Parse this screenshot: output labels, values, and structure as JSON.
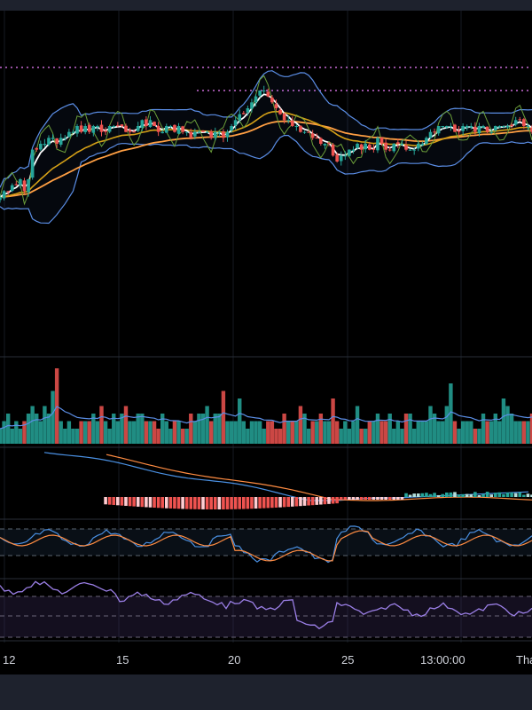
{
  "colors": {
    "background": "#000000",
    "frame": "#1e222d",
    "up": "#26a69a",
    "down": "#ef5350",
    "bollinger": "#5b8ee6",
    "ema_fast": "#ffffff",
    "ema_mid": "#d4a017",
    "ema_slow": "#ff9f43",
    "rsi": "#9b7fe6",
    "stoch_k": "#4a90e2",
    "stoch_d": "#ff8c42",
    "macd": "#4a90e2",
    "signal": "#ff8c42",
    "level_line": "#c86bd6",
    "separator": "#2a2e39"
  },
  "chart_data": [
    {
      "type": "candlestick",
      "panel": "price",
      "xaxis_labels": [
        "12",
        "15",
        "20",
        "25",
        "13:00:00",
        "Thá"
      ],
      "candle_count": 132,
      "ylabel": "",
      "ohlc_close": [
        26,
        27,
        27,
        28,
        28,
        29,
        27,
        29,
        34,
        34,
        35,
        35,
        36,
        36,
        35,
        36,
        36,
        37,
        37,
        38,
        37,
        38,
        37,
        38,
        38,
        37,
        37,
        38,
        38,
        38,
        38,
        37,
        37,
        37,
        38,
        39,
        38,
        39,
        38,
        37,
        37,
        38,
        38,
        37,
        38,
        37,
        37,
        36,
        37,
        37,
        37,
        37,
        36,
        37,
        37,
        36,
        37,
        38,
        39,
        40,
        40,
        41,
        42,
        43,
        44,
        44,
        43,
        42,
        41,
        40,
        39,
        39,
        38,
        38,
        37,
        37,
        37,
        36,
        36,
        35,
        35,
        35,
        33,
        32,
        33,
        33,
        34,
        34,
        35,
        34,
        35,
        34,
        34,
        36,
        35,
        34,
        34,
        35,
        35,
        35,
        34,
        34,
        34,
        35,
        35,
        36,
        37,
        37,
        38,
        38,
        38,
        38,
        37,
        37,
        38,
        38,
        38,
        37,
        38,
        38,
        37,
        37,
        38,
        38,
        38,
        38,
        38,
        39,
        39,
        38,
        38,
        37
      ]
    },
    {
      "type": "bar",
      "panel": "volume",
      "candle_count": 132,
      "values": [
        2,
        3,
        4,
        2,
        3,
        2,
        3,
        4,
        5,
        4,
        3,
        5,
        4,
        7,
        10,
        3,
        2,
        3,
        2,
        2,
        3,
        3,
        3,
        4,
        3,
        5,
        3,
        2,
        4,
        3,
        4,
        5,
        3,
        3,
        4,
        4,
        3,
        3,
        3,
        2,
        4,
        3,
        2,
        3,
        3,
        2,
        2,
        4,
        3,
        4,
        4,
        5,
        3,
        4,
        4,
        7,
        3,
        3,
        3,
        6,
        3,
        2,
        3,
        3,
        3,
        2,
        3,
        3,
        2,
        2,
        4,
        3,
        3,
        3,
        5,
        4,
        2,
        3,
        3,
        4,
        3,
        3,
        6,
        3,
        2,
        3,
        2,
        3,
        5,
        2,
        2,
        3,
        3,
        4,
        3,
        3,
        4,
        2,
        3,
        2,
        4,
        4,
        2,
        3,
        3,
        3,
        5,
        4,
        3,
        3,
        5,
        8,
        3,
        2,
        3,
        3,
        3,
        2,
        2,
        4,
        3,
        3,
        4,
        3,
        6,
        5,
        4,
        3,
        3,
        3,
        3,
        4
      ]
    },
    {
      "type": "line",
      "panel": "macd",
      "series": [
        {
          "values": []
        },
        {
          "values": []
        }
      ]
    },
    {
      "type": "line",
      "panel": "stochastic",
      "levels": [
        80,
        20
      ]
    },
    {
      "type": "line",
      "panel": "rsi",
      "levels": [
        70,
        50,
        30
      ]
    }
  ]
}
